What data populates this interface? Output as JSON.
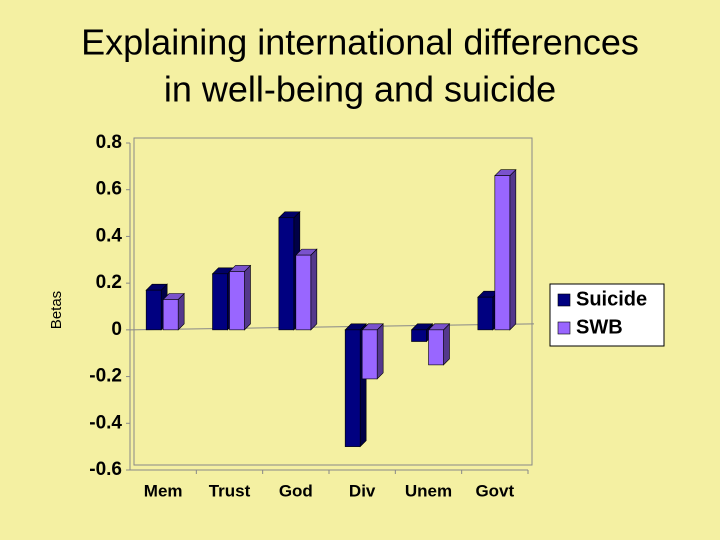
{
  "chart_data": {
    "type": "bar",
    "title": [
      "Explaining international differences",
      "in well-being and suicide"
    ],
    "y_label": "Betas",
    "categories": [
      "Mem",
      "Trust",
      "God",
      "Div",
      "Unem",
      "Govt"
    ],
    "series": [
      {
        "name": "Suicide",
        "color": "#000080",
        "values": [
          0.17,
          0.24,
          0.48,
          -0.5,
          -0.05,
          0.14
        ]
      },
      {
        "name": "SWB",
        "color": "#9966ff",
        "values": [
          0.13,
          0.25,
          0.32,
          -0.21,
          -0.15,
          0.66
        ]
      }
    ],
    "ylim": [
      -0.6,
      0.8
    ],
    "yticks": [
      -0.6,
      -0.4,
      -0.2,
      0,
      0.2,
      0.4,
      0.6,
      0.8
    ],
    "legend": "right"
  }
}
